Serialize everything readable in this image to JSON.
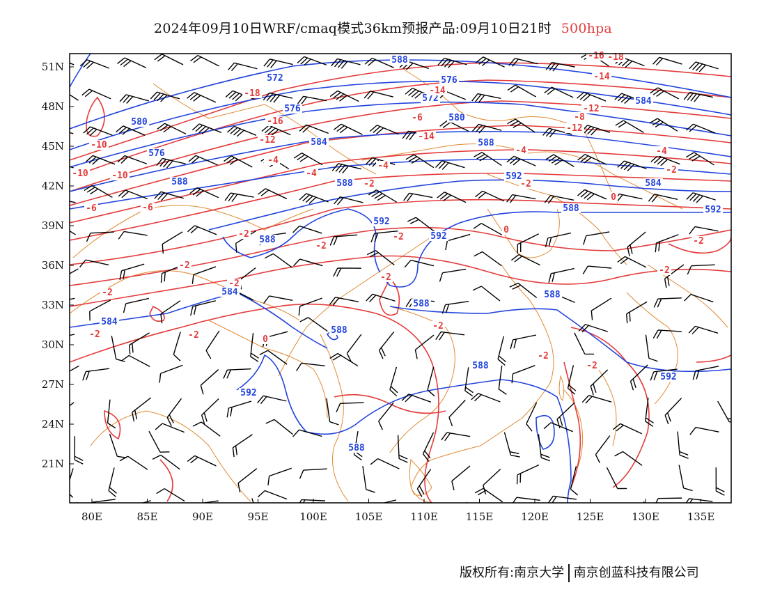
{
  "title": {
    "main": "2024年09月10日WRF/cmaq模式36km预报产品:09月10日21时",
    "level": "500hpa"
  },
  "footer": {
    "copyright": "版权所有:南京大学",
    "company": "南京创蓝科技有限公司"
  },
  "map": {
    "lon_labels": [
      "80E",
      "85E",
      "90E",
      "95E",
      "100E",
      "105E",
      "110E",
      "115E",
      "120E",
      "125E",
      "130E",
      "135E"
    ],
    "lat_labels": [
      "51N",
      "48N",
      "45N",
      "42N",
      "39N",
      "36N",
      "33N",
      "30N",
      "27N",
      "24N",
      "21N"
    ],
    "colors": {
      "height_contour": "#2244dd",
      "temperature_contour": "#e33b3b",
      "coastline_border": "#e08a33",
      "wind_barb": "#000000",
      "frame": "#000000"
    },
    "height_labels": [
      "588",
      "572",
      "576",
      "572",
      "576",
      "580",
      "580",
      "584",
      "576",
      "588",
      "584",
      "588",
      "588",
      "592",
      "584",
      "588",
      "592",
      "588",
      "592",
      "592",
      "584",
      "584",
      "588",
      "588",
      "592",
      "588",
      "588",
      "588",
      "592"
    ],
    "temperature_labels": [
      "-16",
      "-18",
      "-14",
      "-18",
      "-16",
      "-14",
      "-12",
      "-10",
      "-10",
      "-10",
      "-12",
      "-14",
      "-12",
      "-8",
      "-8",
      "-6",
      "-6",
      "-6",
      "-4",
      "-4",
      "-4",
      "-4",
      "-4",
      "-2",
      "-2",
      "-2",
      "-2",
      "0",
      "0",
      "-2",
      "-2",
      "-2",
      "-2",
      "-2",
      "-2",
      "-2",
      "-2",
      "-2",
      "0",
      "-2",
      "-2",
      "-2",
      "-2"
    ]
  }
}
